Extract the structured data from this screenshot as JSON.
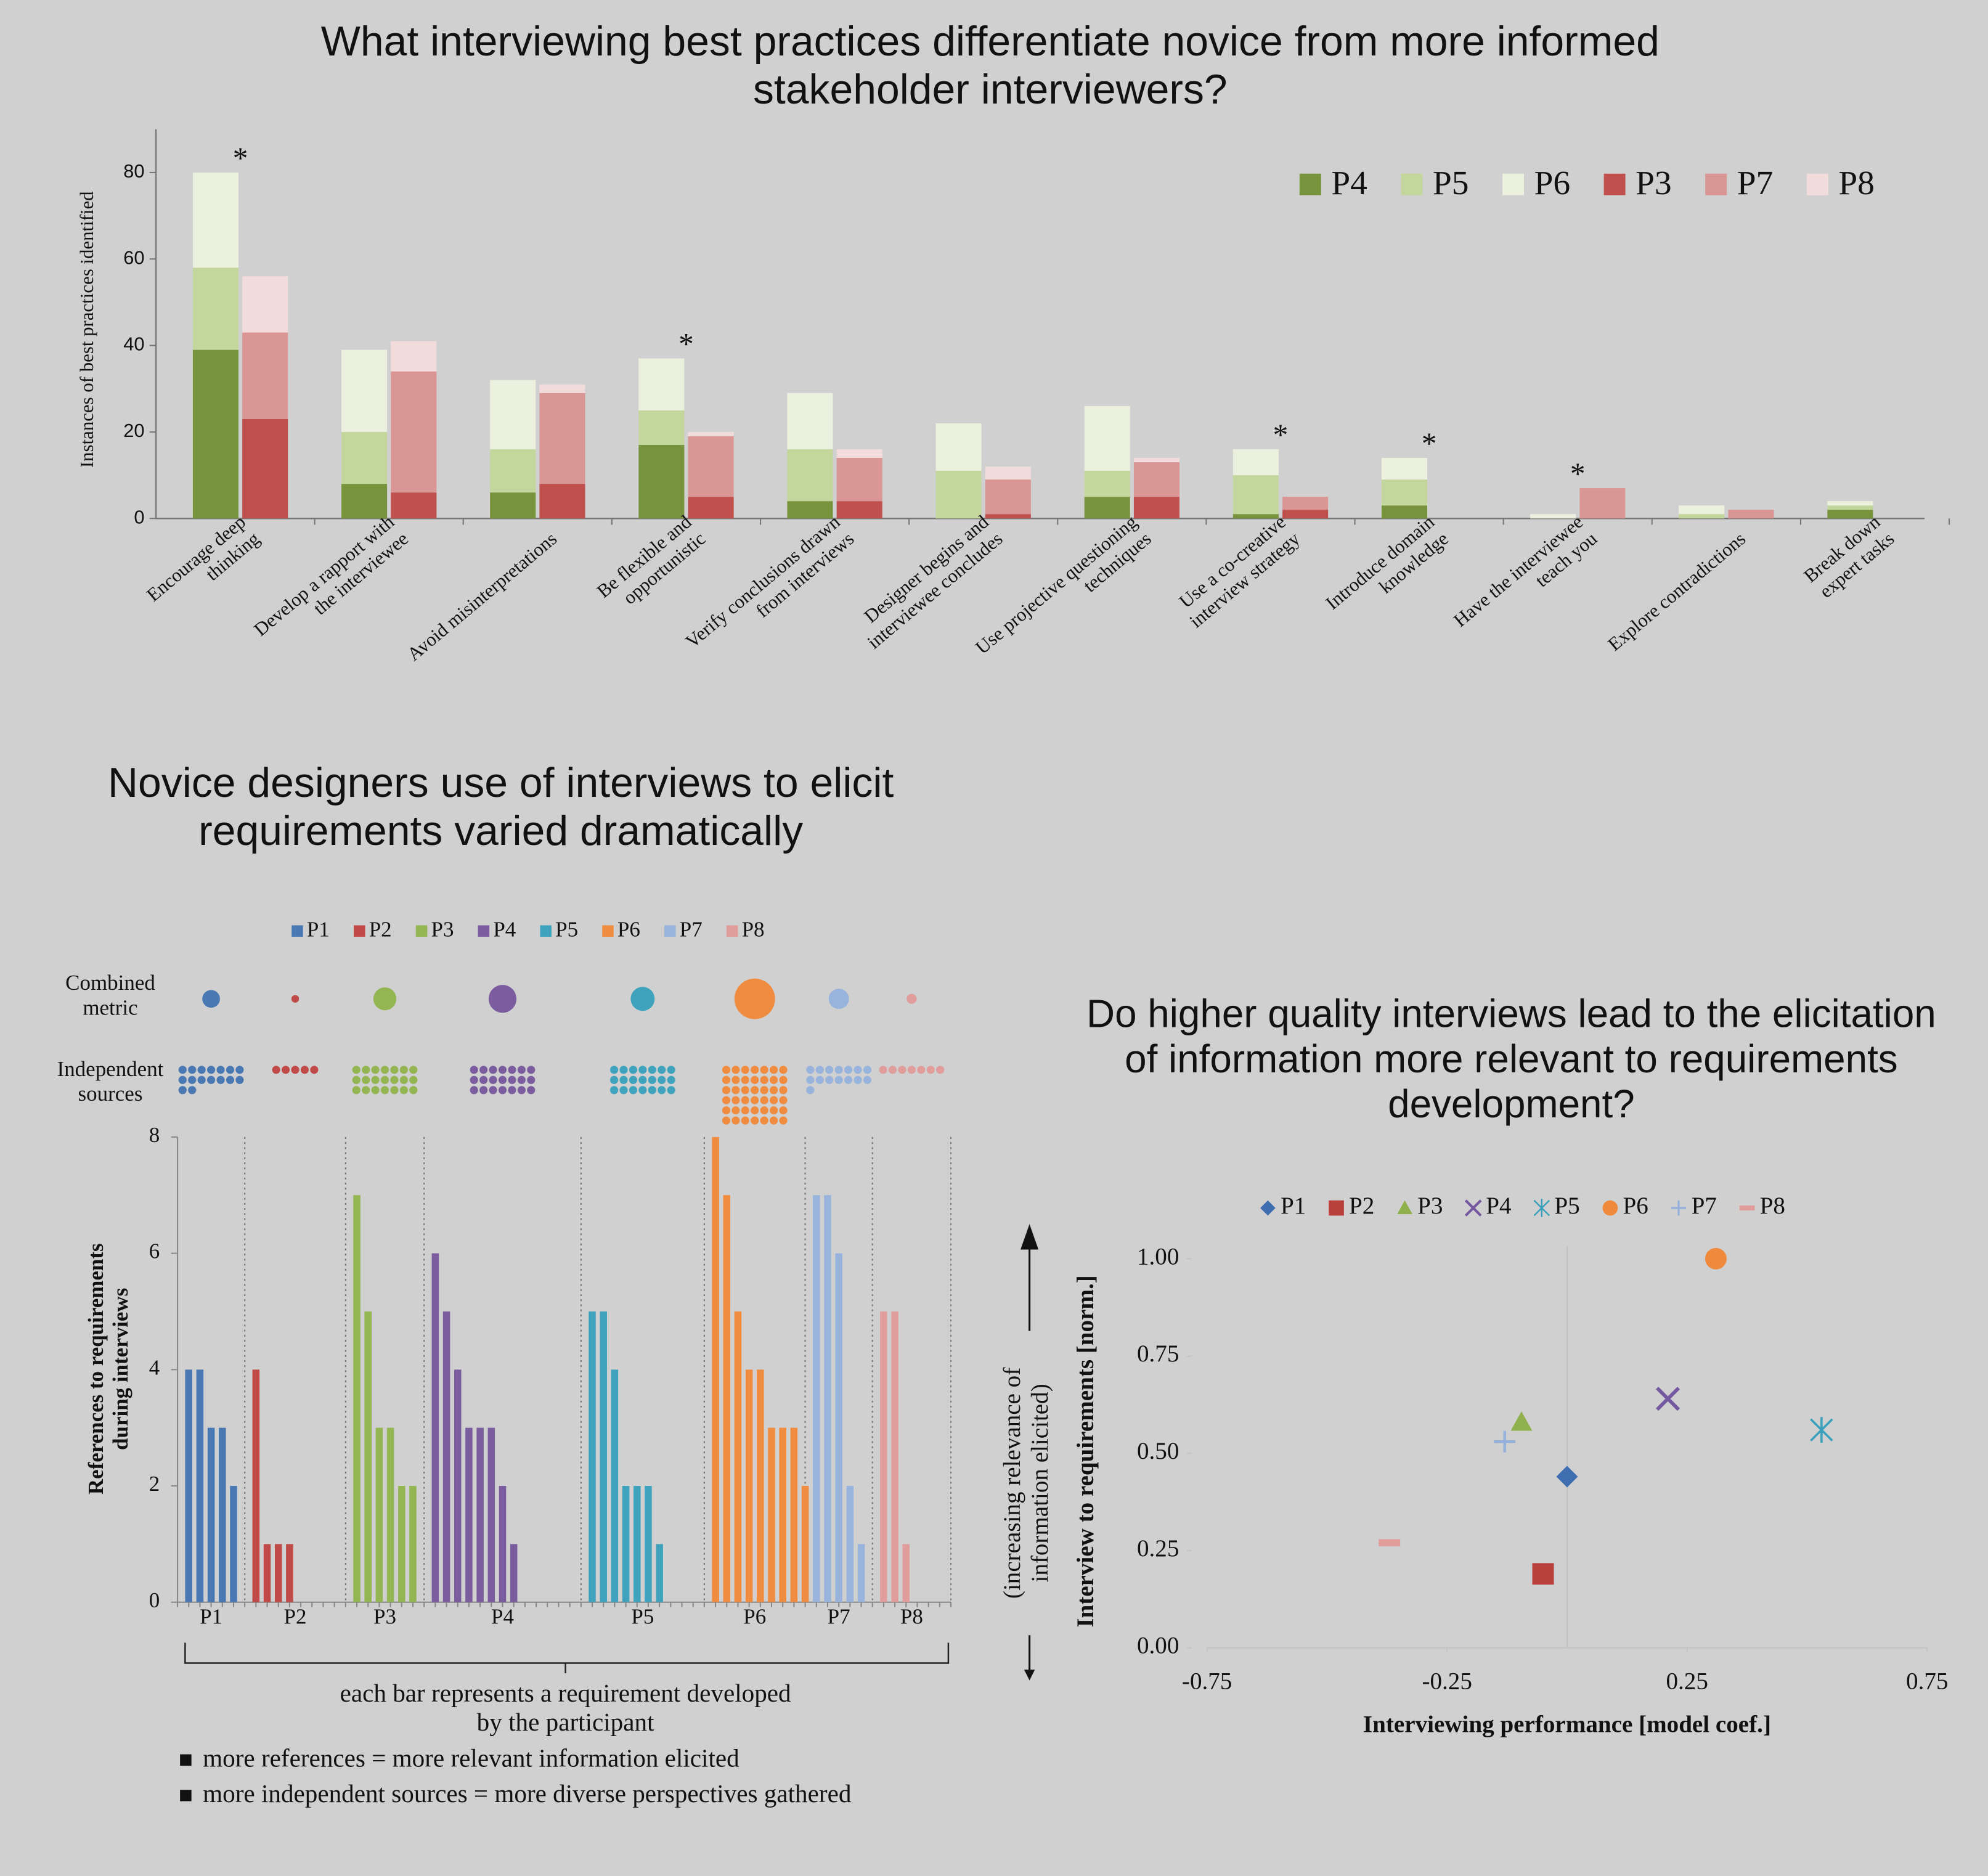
{
  "chart_data": [
    {
      "type": "stacked-bar",
      "title": "What interviewing best practices differentiate novice from more informed\nstakeholder interviewers?",
      "y_label": "Instances of best practices identified",
      "categories": [
        "Encourage deep\nthinking",
        "Develop a rapport with\nthe interviewee",
        "Avoid misinterpretations",
        "Be flexible and\nopportunistic",
        "Verify conclusions drawn\nfrom interviews",
        "Designer begins and\ninterviewee concludes",
        "Use projective questioning\ntechniques",
        "Use a co-creative\ninterview strategy",
        "Introduce domain\nknowledge",
        "Have the interviewee\nteach you",
        "Explore contradictions",
        "Break down\nexpert tasks"
      ],
      "series": [
        {
          "name": "P4",
          "color": "#77933c",
          "stack": 0,
          "values": [
            39,
            8,
            6,
            17,
            4,
            0,
            5,
            1,
            3,
            0,
            0,
            2
          ]
        },
        {
          "name": "P5",
          "color": "#c3d69b",
          "stack": 0,
          "values": [
            19,
            12,
            10,
            8,
            12,
            11,
            6,
            9,
            6,
            0,
            1,
            1
          ]
        },
        {
          "name": "P6",
          "color": "#ebf1de",
          "stack": 0,
          "values": [
            22,
            19,
            16,
            12,
            13,
            11,
            15,
            6,
            5,
            1,
            2,
            1
          ]
        },
        {
          "name": "P3",
          "color": "#c0504d",
          "stack": 1,
          "values": [
            23,
            6,
            8,
            5,
            4,
            1,
            5,
            2,
            0,
            0,
            0,
            0
          ]
        },
        {
          "name": "P7",
          "color": "#d99694",
          "stack": 1,
          "values": [
            20,
            28,
            21,
            14,
            10,
            8,
            8,
            3,
            0,
            7,
            2,
            0
          ]
        },
        {
          "name": "P8",
          "color": "#f2dcdb",
          "stack": 1,
          "values": [
            13,
            7,
            2,
            1,
            2,
            3,
            1,
            0,
            0,
            0,
            0,
            0
          ]
        }
      ],
      "annotations": [
        {
          "text": "*",
          "category": 0
        },
        {
          "text": "*",
          "category": 3
        },
        {
          "text": "*",
          "category": 7
        },
        {
          "text": "*",
          "category": 8
        },
        {
          "text": "*",
          "category": 9
        }
      ],
      "ylim": [
        0,
        90
      ],
      "yticks": [
        0,
        20,
        40,
        60,
        80
      ],
      "legend": "top-right"
    },
    {
      "type": "bar",
      "title": "Novice designers use of interviews to elicit\nrequirements varied dramatically",
      "y_label": "References to requirements\nduring interviews",
      "combined_metric_label": "Combined\nmetric",
      "independent_sources_label": "Independent\nsources",
      "x_note": "each bar represents a requirement developed\nby the participant",
      "notes": [
        "more references = more relevant information elicited",
        "more independent sources = more diverse perspectives gathered"
      ],
      "series": [
        {
          "name": "P1",
          "color": "#4a78b3",
          "values": [
            4,
            4,
            3,
            3,
            2
          ],
          "combined_metric": 0.19,
          "independent_sources": 16
        },
        {
          "name": "P2",
          "color": "#bf4a47",
          "values": [
            4,
            1,
            1,
            1
          ],
          "combined_metric": 0.035,
          "independent_sources": 5
        },
        {
          "name": "P3",
          "color": "#93b552",
          "values": [
            7,
            5,
            3,
            3,
            2,
            2
          ],
          "combined_metric": 0.32,
          "independent_sources": 21
        },
        {
          "name": "P4",
          "color": "#7b5c9f",
          "values": [
            6,
            5,
            4,
            3,
            3,
            3,
            2,
            1
          ],
          "combined_metric": 0.47,
          "independent_sources": 21
        },
        {
          "name": "P5",
          "color": "#3fa3bd",
          "values": [
            5,
            5,
            4,
            2,
            2,
            2,
            1
          ],
          "combined_metric": 0.35,
          "independent_sources": 21
        },
        {
          "name": "P6",
          "color": "#ef8c3f",
          "values": [
            8,
            7,
            5,
            4,
            4,
            3,
            3,
            3,
            2
          ],
          "combined_metric": 1,
          "independent_sources": 42
        },
        {
          "name": "P7",
          "color": "#98b4dc",
          "values": [
            7,
            7,
            6,
            2,
            1
          ],
          "combined_metric": 0.25,
          "independent_sources": 15
        },
        {
          "name": "P8",
          "color": "#e09d9c",
          "values": [
            5,
            5,
            1
          ],
          "combined_metric": 0.06,
          "independent_sources": 7
        }
      ],
      "ylim": [
        0,
        8
      ],
      "yticks": [
        0,
        2,
        4,
        6,
        8
      ],
      "legend": "top"
    },
    {
      "type": "scatter",
      "title": "Do higher quality interviews lead to the elicitation\nof information more relevant to requirements\ndevelopment?",
      "x_label": "Interviewing performance [model coef.]",
      "y_label": "Interview to requirements [norm.]",
      "y_note": "(increasing relevance of\ninformation elicited)",
      "series": [
        {
          "name": "P1",
          "color": "#3f6eb0",
          "marker": "diamond",
          "x": [
            0.0
          ],
          "values": [
            0.44
          ]
        },
        {
          "name": "P2",
          "color": "#b8403d",
          "marker": "square",
          "x": [
            -0.05
          ],
          "values": [
            0.19
          ]
        },
        {
          "name": "P3",
          "color": "#8fb04c",
          "marker": "triangle",
          "x": [
            -0.095
          ],
          "values": [
            0.58
          ]
        },
        {
          "name": "P4",
          "color": "#7458a0",
          "marker": "x",
          "x": [
            0.21
          ],
          "values": [
            0.64
          ]
        },
        {
          "name": "P5",
          "color": "#3aa0bb",
          "marker": "star",
          "x": [
            0.53
          ],
          "values": [
            0.56
          ]
        },
        {
          "name": "P6",
          "color": "#ef8a3c",
          "marker": "circle",
          "x": [
            0.31
          ],
          "values": [
            1.0
          ]
        },
        {
          "name": "P7",
          "color": "#93b0dc",
          "marker": "plus",
          "x": [
            -0.13
          ],
          "values": [
            0.53
          ]
        },
        {
          "name": "P8",
          "color": "#e09d9c",
          "marker": "dash",
          "x": [
            -0.37
          ],
          "values": [
            0.27
          ]
        }
      ],
      "xlim": [
        -0.75,
        0.75
      ],
      "xticks": [
        -0.75,
        -0.25,
        0.25,
        0.75
      ],
      "ylim": [
        0,
        1
      ],
      "yticks": [
        {
          "value": 0,
          "label": "0.00"
        },
        {
          "value": 0.25,
          "label": "0.25"
        },
        {
          "value": 0.5,
          "label": "0.50"
        },
        {
          "value": 0.75,
          "label": "0.75"
        },
        {
          "value": 1,
          "label": "1.00"
        }
      ],
      "legend": "top"
    }
  ]
}
